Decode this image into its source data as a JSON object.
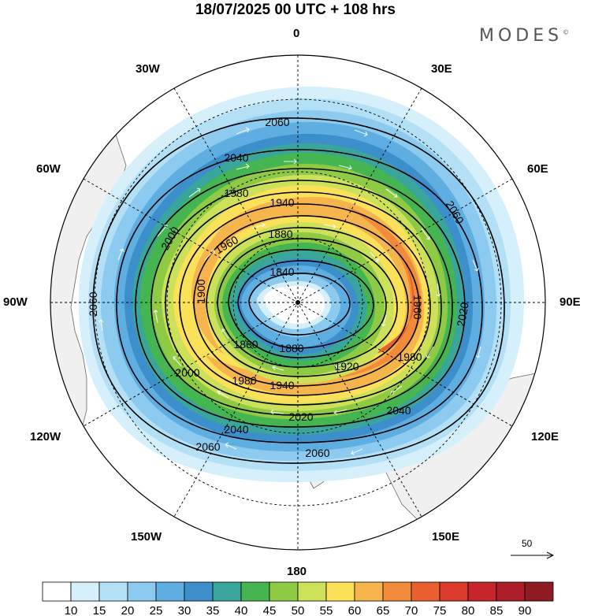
{
  "title": "18/07/2025  00 UTC  + 108 hrs",
  "brand": "MODES",
  "brand_mark": "©",
  "longitude_labels": {
    "lon_0": "0",
    "lon_30e": "30E",
    "lon_60e": "60E",
    "lon_90e": "90E",
    "lon_120e": "120E",
    "lon_150e": "150E",
    "lon_180": "180",
    "lon_150w": "150W",
    "lon_120w": "120W",
    "lon_90w": "90W",
    "lon_60w": "60W",
    "lon_30w": "30W"
  },
  "contour_labels": [
    "2060",
    "2040",
    "2020",
    "2000",
    "1980",
    "1960",
    "1940",
    "1920",
    "1900",
    "1880",
    "1860",
    "1840"
  ],
  "reference_vector": "50",
  "colorbar": {
    "labels": [
      "10",
      "15",
      "20",
      "25",
      "30",
      "35",
      "40",
      "45",
      "50",
      "55",
      "60",
      "65",
      "70",
      "75",
      "80",
      "85",
      "90"
    ],
    "colors": [
      "#ffffff",
      "#d6f0fb",
      "#b4e0f6",
      "#8ccbef",
      "#5faee2",
      "#3d8fcb",
      "#3aa59a",
      "#45b552",
      "#8fca45",
      "#cde05a",
      "#fbe05a",
      "#f6b44c",
      "#f18a3a",
      "#e9602e",
      "#da3a2a",
      "#c6262b",
      "#ad1f2a",
      "#8e1a22"
    ]
  }
}
